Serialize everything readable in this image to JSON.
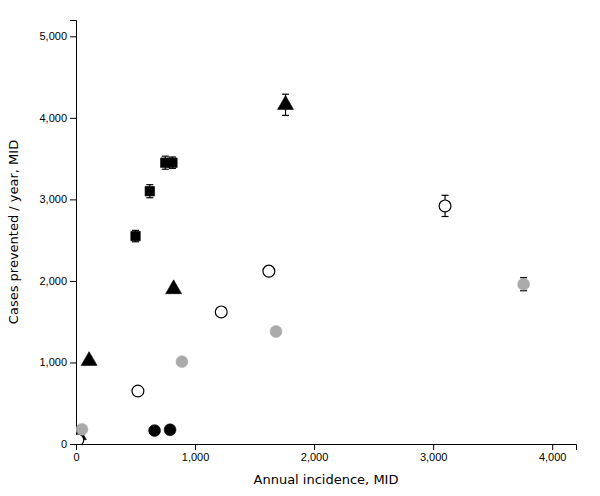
{
  "chart_data": {
    "type": "scatter",
    "xlabel": "Annual incidence, MID",
    "ylabel": "Cases prevented / year, MID",
    "xlim": [
      0,
      4200
    ],
    "ylim": [
      0,
      5200
    ],
    "xticks": [
      0,
      {
        "value": 1000,
        "label": "1,000"
      },
      {
        "value": 2000,
        "label": "2,000"
      },
      {
        "value": 3000,
        "label": "3,000"
      },
      {
        "value": 4000,
        "label": "4,000"
      }
    ],
    "yticks": [
      0,
      {
        "value": 1000,
        "label": "1,000"
      },
      {
        "value": 2000,
        "label": "2,000"
      },
      {
        "value": 3000,
        "label": "3,000"
      },
      {
        "value": 4000,
        "label": "4,000"
      },
      {
        "value": 5000,
        "label": "5,000"
      }
    ],
    "grid": false,
    "series": [
      {
        "marker": "square",
        "color": "black",
        "x": [
          500,
          620,
          750,
          810
        ],
        "values": [
          2550,
          3100,
          3450,
          3450
        ],
        "errors": [
          70,
          80,
          80,
          70
        ]
      },
      {
        "marker": "triangle",
        "color": "black",
        "x": [
          20,
          110,
          820,
          1760
        ],
        "values": [
          110,
          1020,
          1900,
          4160
        ],
        "errors": [
          0,
          0,
          0,
          130
        ]
      },
      {
        "marker": "circle-open",
        "color": "black",
        "x": [
          15,
          520,
          1220,
          1620,
          3100
        ],
        "values": [
          50,
          650,
          1620,
          2120,
          2920
        ],
        "errors": [
          0,
          0,
          50,
          55,
          130
        ]
      },
      {
        "marker": "circle",
        "color": "#aaaaaa",
        "x": [
          50,
          890,
          1680,
          3760
        ],
        "values": [
          180,
          1010,
          1380,
          1960
        ],
        "errors": [
          0,
          0,
          0,
          80
        ]
      },
      {
        "marker": "circle",
        "color": "black",
        "x": [
          660,
          790
        ],
        "values": [
          165,
          175
        ]
      }
    ]
  }
}
